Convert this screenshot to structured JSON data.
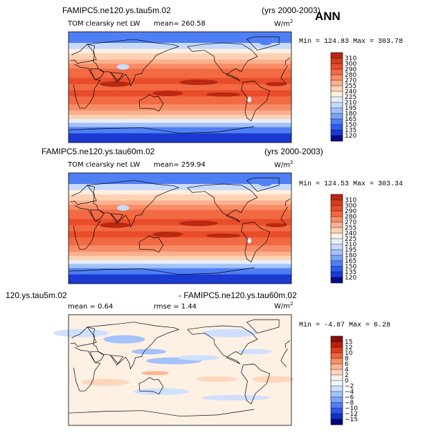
{
  "ann_label": "ANN",
  "colors": {
    "warm_scale": [
      "#0a0a8c",
      "#1a3ad1",
      "#2d5cf0",
      "#4f7ff4",
      "#7aa3f7",
      "#a3c2fa",
      "#c8dafc",
      "#e6efff",
      "#fff0e0",
      "#fdd2b4",
      "#fbb08e",
      "#f78c66",
      "#f26a43",
      "#e84c2a",
      "#d63c1b",
      "#b9280f",
      "#8f1207"
    ],
    "diff_scale": [
      "#05057a",
      "#1432c4",
      "#2b57ea",
      "#4f7ff4",
      "#7aa3f7",
      "#a3c2fa",
      "#cfe0fd",
      "#eef4ff",
      "#fff2e6",
      "#fdd6bc",
      "#fbb690",
      "#f78f66",
      "#ef6440",
      "#dc3d1f",
      "#b8200c",
      "#85100a"
    ]
  },
  "panels": [
    {
      "title_left": "FAMIPC5.ne120.ys.tau5m.02",
      "title_right": "(yrs 2000-2003)",
      "subtitle": "TOM clearsky net LW",
      "mean_text": "mean= 260.58",
      "units": "W/m",
      "units_sup": "2",
      "minmax": "Min = 124.83 Max = 303.78"
    },
    {
      "title_left": "FAMIPC5.ne120.ys.tau60m.02",
      "title_right": "(yrs 2000-2003)",
      "subtitle": "TOM clearsky net LW",
      "mean_text": "mean= 259.94",
      "units": "W/m",
      "units_sup": "2",
      "minmax": "Min = 124.53 Max = 303.34"
    },
    {
      "title_left": "120.ys.tau5m.02",
      "title_right": "- FAMIPC5.ne120.ys.tau60m.02",
      "subtitle": "mean =    0.64",
      "mean_text": "rmse =    1.44",
      "units": "W/m",
      "units_sup": "2",
      "minmax": "Min =  -4.87 Max =   6.28"
    }
  ],
  "chart_data": [
    {
      "type": "heatmap",
      "title": "FAMIPC5.ne120.ys.tau5m.02 TOM clearsky net LW",
      "units": "W/m2",
      "mean": 260.58,
      "min": 124.83,
      "max": 303.78,
      "colorbar_levels": [
        "310",
        "300",
        "290",
        "280",
        "270",
        "255",
        "240",
        "225",
        "210",
        "195",
        "180",
        "165",
        "150",
        "135",
        "120"
      ],
      "colorbar_ticks": [
        310,
        300,
        290,
        280,
        270,
        255,
        240,
        225,
        210,
        195,
        180,
        165,
        150,
        135,
        120
      ]
    },
    {
      "type": "heatmap",
      "title": "FAMIPC5.ne120.ys.tau60m.02 TOM clearsky net LW",
      "units": "W/m2",
      "mean": 259.94,
      "min": 124.53,
      "max": 303.34,
      "colorbar_levels": [
        "310",
        "300",
        "290",
        "280",
        "270",
        "255",
        "240",
        "225",
        "210",
        "195",
        "180",
        "165",
        "150",
        "135",
        "120"
      ],
      "colorbar_ticks": [
        310,
        300,
        290,
        280,
        270,
        255,
        240,
        225,
        210,
        195,
        180,
        165,
        150,
        135,
        120
      ]
    },
    {
      "type": "heatmap",
      "title": "120.ys.tau5m.02 - FAMIPC5.ne120.ys.tau60m.02",
      "units": "W/m2",
      "mean": 0.64,
      "rmse": 1.44,
      "min": -4.87,
      "max": 6.28,
      "colorbar_levels": [
        "15",
        "12",
        "10",
        "8",
        "6",
        "4",
        "2",
        "0",
        "−2",
        "−4",
        "−6",
        "−8",
        "−10",
        "−12",
        "−15"
      ],
      "colorbar_ticks": [
        15,
        12,
        10,
        8,
        6,
        4,
        2,
        0,
        -2,
        -4,
        -6,
        -8,
        -10,
        -12,
        -15
      ]
    }
  ]
}
